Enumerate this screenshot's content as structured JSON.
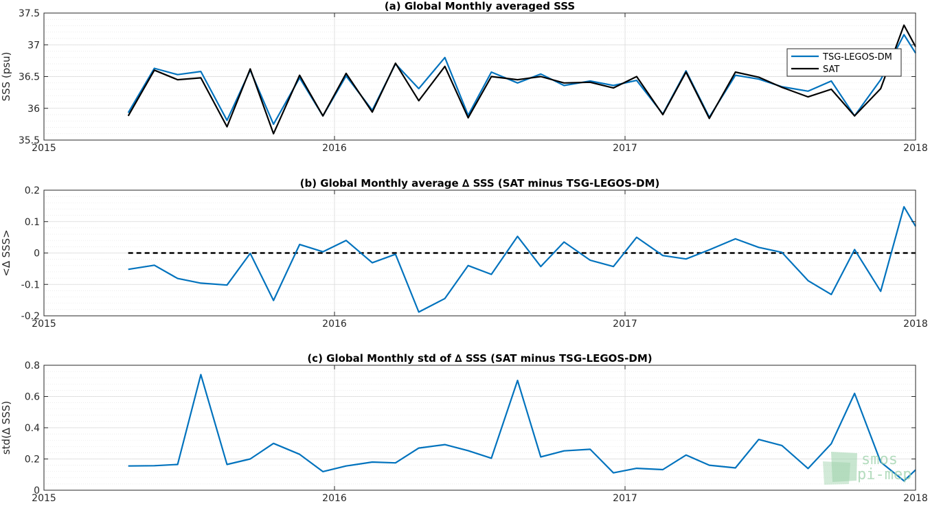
{
  "logo": {
    "line1": "smos",
    "line2": "pi-mep",
    "color": "#9bd1a9"
  },
  "chart_data": [
    {
      "type": "line",
      "title": "(a) Global Monthly averaged SSS",
      "xlabel": "",
      "ylabel": "SSS (psu)",
      "xlim": [
        2015,
        2018
      ],
      "xticks": [
        2015,
        2016,
        2017,
        2018
      ],
      "ylim": [
        35.5,
        37.5
      ],
      "yticks": [
        35.5,
        36,
        36.5,
        37,
        37.5
      ],
      "ytick_labels": [
        "35.5",
        "36",
        "36.5",
        "37",
        "37.5"
      ],
      "grid": true,
      "legend": "top-right",
      "x": [
        2015.29,
        2015.38,
        2015.46,
        2015.54,
        2015.63,
        2015.71,
        2015.79,
        2015.88,
        2015.96,
        2016.04,
        2016.13,
        2016.21,
        2016.29,
        2016.38,
        2016.46,
        2016.54,
        2016.63,
        2016.71,
        2016.79,
        2016.88,
        2016.96,
        2017.04,
        2017.13,
        2017.21,
        2017.29,
        2017.38,
        2017.46,
        2017.54,
        2017.63,
        2017.71,
        2017.79,
        2017.88,
        2017.96,
        2018.0
      ],
      "series": [
        {
          "name": "TSG-LEGOS-DM",
          "color": "#0072bd",
          "values": [
            35.93,
            36.63,
            36.53,
            36.58,
            35.81,
            36.6,
            35.75,
            36.48,
            35.88,
            36.51,
            35.97,
            36.7,
            36.31,
            36.8,
            35.89,
            36.57,
            36.4,
            36.54,
            36.36,
            36.43,
            36.36,
            36.44,
            35.91,
            36.59,
            35.86,
            36.52,
            36.46,
            36.34,
            36.27,
            36.43,
            35.88,
            36.45,
            37.16,
            36.87
          ]
        },
        {
          "name": "SAT",
          "color": "#000000",
          "values": [
            35.88,
            36.6,
            36.45,
            36.48,
            35.71,
            36.62,
            35.6,
            36.52,
            35.88,
            36.55,
            35.94,
            36.71,
            36.12,
            36.66,
            35.85,
            36.5,
            36.45,
            36.5,
            36.4,
            36.41,
            36.32,
            36.5,
            35.9,
            36.57,
            35.84,
            36.57,
            36.49,
            36.33,
            36.18,
            36.3,
            35.88,
            36.31,
            37.31,
            36.97
          ]
        }
      ]
    },
    {
      "type": "line",
      "title": "(b) Global Monthly average ∆ SSS (SAT minus TSG-LEGOS-DM)",
      "xlabel": "",
      "ylabel": "<∆ SSS>",
      "xlim": [
        2015,
        2018
      ],
      "xticks": [
        2015,
        2016,
        2017,
        2018
      ],
      "ylim": [
        -0.2,
        0.2
      ],
      "yticks": [
        -0.2,
        -0.1,
        0,
        0.1,
        0.2
      ],
      "ytick_labels": [
        "-0.2",
        "-0.1",
        "0",
        "0.1",
        "0.2"
      ],
      "grid": true,
      "reference_line": {
        "y": 0,
        "style": "dashed",
        "color": "#000000"
      },
      "x": [
        2015.29,
        2015.38,
        2015.46,
        2015.54,
        2015.63,
        2015.71,
        2015.79,
        2015.88,
        2015.96,
        2016.04,
        2016.13,
        2016.21,
        2016.29,
        2016.38,
        2016.46,
        2016.54,
        2016.63,
        2016.71,
        2016.79,
        2016.88,
        2016.96,
        2017.04,
        2017.13,
        2017.21,
        2017.29,
        2017.38,
        2017.46,
        2017.54,
        2017.63,
        2017.71,
        2017.79,
        2017.88,
        2017.96,
        2018.0
      ],
      "series": [
        {
          "color": "#0072bd",
          "values": [
            -0.052,
            -0.039,
            -0.081,
            -0.096,
            -0.102,
            -0.001,
            -0.151,
            0.027,
            0.004,
            0.04,
            -0.031,
            -0.004,
            -0.188,
            -0.145,
            -0.04,
            -0.068,
            0.053,
            -0.043,
            0.035,
            -0.023,
            -0.043,
            0.05,
            -0.008,
            -0.019,
            0.01,
            0.045,
            0.018,
            0.002,
            -0.088,
            -0.132,
            0.011,
            -0.122,
            0.147,
            0.085
          ]
        }
      ]
    },
    {
      "type": "line",
      "title": "(c) Global Monthly std of ∆ SSS (SAT minus TSG-LEGOS-DM)",
      "xlabel": "",
      "ylabel": "std(∆ SSS)",
      "xlim": [
        2015,
        2018
      ],
      "xticks": [
        2015,
        2016,
        2017,
        2018
      ],
      "ylim": [
        0,
        0.8
      ],
      "yticks": [
        0,
        0.2,
        0.4,
        0.6,
        0.8
      ],
      "ytick_labels": [
        "0",
        "0.2",
        "0.4",
        "0.6",
        "0.8"
      ],
      "grid": true,
      "x": [
        2015.29,
        2015.38,
        2015.46,
        2015.54,
        2015.63,
        2015.71,
        2015.79,
        2015.88,
        2015.96,
        2016.04,
        2016.13,
        2016.21,
        2016.29,
        2016.38,
        2016.46,
        2016.54,
        2016.63,
        2016.71,
        2016.79,
        2016.88,
        2016.96,
        2017.04,
        2017.13,
        2017.21,
        2017.29,
        2017.38,
        2017.46,
        2017.54,
        2017.63,
        2017.71,
        2017.79,
        2017.88,
        2017.96,
        2018.0
      ],
      "series": [
        {
          "color": "#0072bd",
          "values": [
            0.155,
            0.157,
            0.165,
            0.74,
            0.165,
            0.2,
            0.3,
            0.23,
            0.119,
            0.155,
            0.18,
            0.175,
            0.27,
            0.292,
            0.253,
            0.205,
            0.703,
            0.213,
            0.252,
            0.262,
            0.111,
            0.14,
            0.132,
            0.225,
            0.16,
            0.143,
            0.325,
            0.286,
            0.139,
            0.298,
            0.62,
            0.18,
            0.06,
            0.13
          ]
        }
      ]
    }
  ]
}
